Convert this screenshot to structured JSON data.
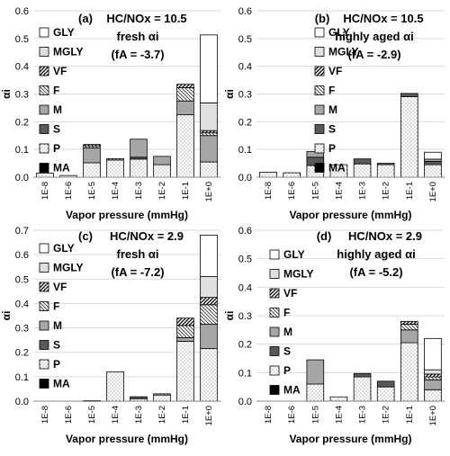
{
  "chart_data": [
    {
      "type": "bar",
      "stacked": true,
      "panel_label": "(a)",
      "annotation": [
        "HC/NOx = 10.5",
        "fresh αi",
        "(fA = -3.7)"
      ],
      "xlabel": "Vapor pressure (mmHg)",
      "ylabel": "αi",
      "ylim": [
        0,
        0.6
      ],
      "yticks": [
        0.0,
        0.1,
        0.2,
        0.3,
        0.4,
        0.5,
        0.6
      ],
      "categories": [
        "1E-8",
        "1E-6",
        "1E-5",
        "1E-4",
        "1E-3",
        "1E-2",
        "1E-1",
        "1E+0"
      ],
      "legend": [
        "GLY",
        "MGLY",
        "VF",
        "F",
        "M",
        "S",
        "P",
        "MA"
      ],
      "legend_position": "left",
      "series": [
        {
          "name": "MA",
          "values": [
            0.0,
            0.0,
            0.0,
            0.0,
            0.0,
            0.0,
            0.0,
            0.0
          ]
        },
        {
          "name": "P",
          "values": [
            0.015,
            0.006,
            0.052,
            0.062,
            0.065,
            0.045,
            0.225,
            0.055
          ]
        },
        {
          "name": "S",
          "values": [
            0.0,
            0.0,
            0.0,
            0.0,
            0.007,
            0.0,
            0.0,
            0.0
          ]
        },
        {
          "name": "M",
          "values": [
            0.0,
            0.0,
            0.054,
            0.0,
            0.065,
            0.03,
            0.05,
            0.095
          ]
        },
        {
          "name": "F",
          "values": [
            0.0,
            0.0,
            0.007,
            0.005,
            0.0,
            0.0,
            0.048,
            0.01
          ]
        },
        {
          "name": "VF",
          "values": [
            0.0,
            0.0,
            0.005,
            0.0,
            0.0,
            0.0,
            0.012,
            0.008
          ]
        },
        {
          "name": "MGLY",
          "values": [
            0.0,
            0.0,
            0.0,
            0.0,
            0.0,
            0.0,
            0.0,
            0.1
          ]
        },
        {
          "name": "GLY",
          "values": [
            0.0,
            0.0,
            0.0,
            0.0,
            0.0,
            0.0,
            0.0,
            0.245
          ]
        }
      ]
    },
    {
      "type": "bar",
      "stacked": true,
      "panel_label": "(b)",
      "annotation": [
        "HC/NOx = 10.5",
        "highly aged αi",
        "(fA = -2.9)"
      ],
      "xlabel": "Vapor pressure (mmHg)",
      "ylabel": "αi",
      "ylim": [
        0,
        0.6
      ],
      "yticks": [
        0.0,
        0.1,
        0.2,
        0.3,
        0.4,
        0.5,
        0.6
      ],
      "categories": [
        "1E-8",
        "1E-6",
        "1E-5",
        "1E-4",
        "1E-3",
        "1E-2",
        "1E-1",
        "1E+0"
      ],
      "legend": [
        "GLY",
        "MGLY",
        "VF",
        "F",
        "M",
        "S",
        "P",
        "MA"
      ],
      "legend_position": "right",
      "series": [
        {
          "name": "MA",
          "values": [
            0.0,
            0.0,
            0.0,
            0.0,
            0.0,
            0.0,
            0.0,
            0.0
          ]
        },
        {
          "name": "P",
          "values": [
            0.018,
            0.016,
            0.042,
            0.045,
            0.048,
            0.045,
            0.29,
            0.045
          ]
        },
        {
          "name": "S",
          "values": [
            0.0,
            0.0,
            0.03,
            0.0,
            0.018,
            0.005,
            0.012,
            0.012
          ]
        },
        {
          "name": "M",
          "values": [
            0.0,
            0.0,
            0.021,
            0.0,
            0.0,
            0.0,
            0.0,
            0.008
          ]
        },
        {
          "name": "F",
          "values": [
            0.0,
            0.0,
            0.0,
            0.0,
            0.0,
            0.0,
            0.0,
            0.0
          ]
        },
        {
          "name": "VF",
          "values": [
            0.0,
            0.0,
            0.0,
            0.0,
            0.0,
            0.0,
            0.0,
            0.0
          ]
        },
        {
          "name": "MGLY",
          "values": [
            0.0,
            0.0,
            0.0,
            0.0,
            0.0,
            0.0,
            0.0,
            0.0
          ]
        },
        {
          "name": "GLY",
          "values": [
            0.0,
            0.0,
            0.0,
            0.0,
            0.0,
            0.0,
            0.0,
            0.025
          ]
        }
      ]
    },
    {
      "type": "bar",
      "stacked": true,
      "panel_label": "(c)",
      "annotation": [
        "HC/NOx = 2.9",
        "fresh αi",
        "(fA = -7.2)"
      ],
      "xlabel": "Vapor pressure (mmHg)",
      "ylabel": "αi",
      "ylim": [
        0,
        0.7
      ],
      "yticks": [
        0.0,
        0.1,
        0.2,
        0.3,
        0.4,
        0.5,
        0.6,
        0.7
      ],
      "categories": [
        "1E-8",
        "1E-6",
        "1E-5",
        "1E-4",
        "1E-3",
        "1E-2",
        "1E-1",
        "1E+0"
      ],
      "legend": [
        "GLY",
        "MGLY",
        "VF",
        "F",
        "M",
        "S",
        "P",
        "MA"
      ],
      "legend_position": "left",
      "series": [
        {
          "name": "MA",
          "values": [
            0.0,
            0.0,
            0.0,
            0.0,
            0.0,
            0.0,
            0.0,
            0.0
          ]
        },
        {
          "name": "P",
          "values": [
            0.0,
            0.0,
            0.0,
            0.12,
            0.01,
            0.025,
            0.245,
            0.215
          ]
        },
        {
          "name": "S",
          "values": [
            0.0,
            0.0,
            0.0,
            0.0,
            0.008,
            0.0,
            0.0,
            0.0
          ]
        },
        {
          "name": "M",
          "values": [
            0.0,
            0.0,
            0.002,
            0.0,
            0.0,
            0.0,
            0.015,
            0.1
          ]
        },
        {
          "name": "F",
          "values": [
            0.0,
            0.0,
            0.0,
            0.0,
            0.0,
            0.005,
            0.05,
            0.08
          ]
        },
        {
          "name": "VF",
          "values": [
            0.0,
            0.0,
            0.0,
            0.0,
            0.0,
            0.0,
            0.03,
            0.03
          ]
        },
        {
          "name": "MGLY",
          "values": [
            0.0,
            0.0,
            0.0,
            0.0,
            0.0,
            0.0,
            0.0,
            0.085
          ]
        },
        {
          "name": "GLY",
          "values": [
            0.0,
            0.0,
            0.0,
            0.0,
            0.0,
            0.0,
            0.0,
            0.17
          ]
        }
      ]
    },
    {
      "type": "bar",
      "stacked": true,
      "panel_label": "(d)",
      "annotation": [
        "HC/NOx = 2.9",
        "highly aged αi",
        "(fA = -5.2)"
      ],
      "xlabel": "Vapor pressure (mmHg)",
      "ylabel": "αi",
      "ylim": [
        0,
        0.6
      ],
      "yticks": [
        0.0,
        0.1,
        0.2,
        0.3,
        0.4,
        0.5,
        0.6
      ],
      "categories": [
        "1E-8",
        "1E-6",
        "1E-5",
        "1E-4",
        "1E-3",
        "1E-2",
        "1E-1",
        "1E+0"
      ],
      "legend": [
        "GLY",
        "MGLY",
        "VF",
        "F",
        "M",
        "S",
        "P",
        "MA"
      ],
      "legend_position": "left",
      "series": [
        {
          "name": "MA",
          "values": [
            0.0,
            0.0,
            0.0,
            0.0,
            0.0,
            0.0,
            0.0,
            0.0
          ]
        },
        {
          "name": "P",
          "values": [
            0.0,
            0.0,
            0.06,
            0.015,
            0.085,
            0.05,
            0.205,
            0.04
          ]
        },
        {
          "name": "S",
          "values": [
            0.0,
            0.0,
            0.0,
            0.0,
            0.012,
            0.02,
            0.0,
            0.0
          ]
        },
        {
          "name": "M",
          "values": [
            0.0,
            0.0,
            0.085,
            0.0,
            0.0,
            0.0,
            0.045,
            0.035
          ]
        },
        {
          "name": "F",
          "values": [
            0.0,
            0.0,
            0.0,
            0.0,
            0.0,
            0.0,
            0.02,
            0.01
          ]
        },
        {
          "name": "VF",
          "values": [
            0.0,
            0.0,
            0.0,
            0.0,
            0.0,
            0.0,
            0.01,
            0.01
          ]
        },
        {
          "name": "MGLY",
          "values": [
            0.0,
            0.0,
            0.0,
            0.0,
            0.0,
            0.0,
            0.0,
            0.015
          ]
        },
        {
          "name": "GLY",
          "values": [
            0.0,
            0.0,
            0.0,
            0.0,
            0.0,
            0.0,
            0.0,
            0.11
          ]
        }
      ]
    }
  ]
}
